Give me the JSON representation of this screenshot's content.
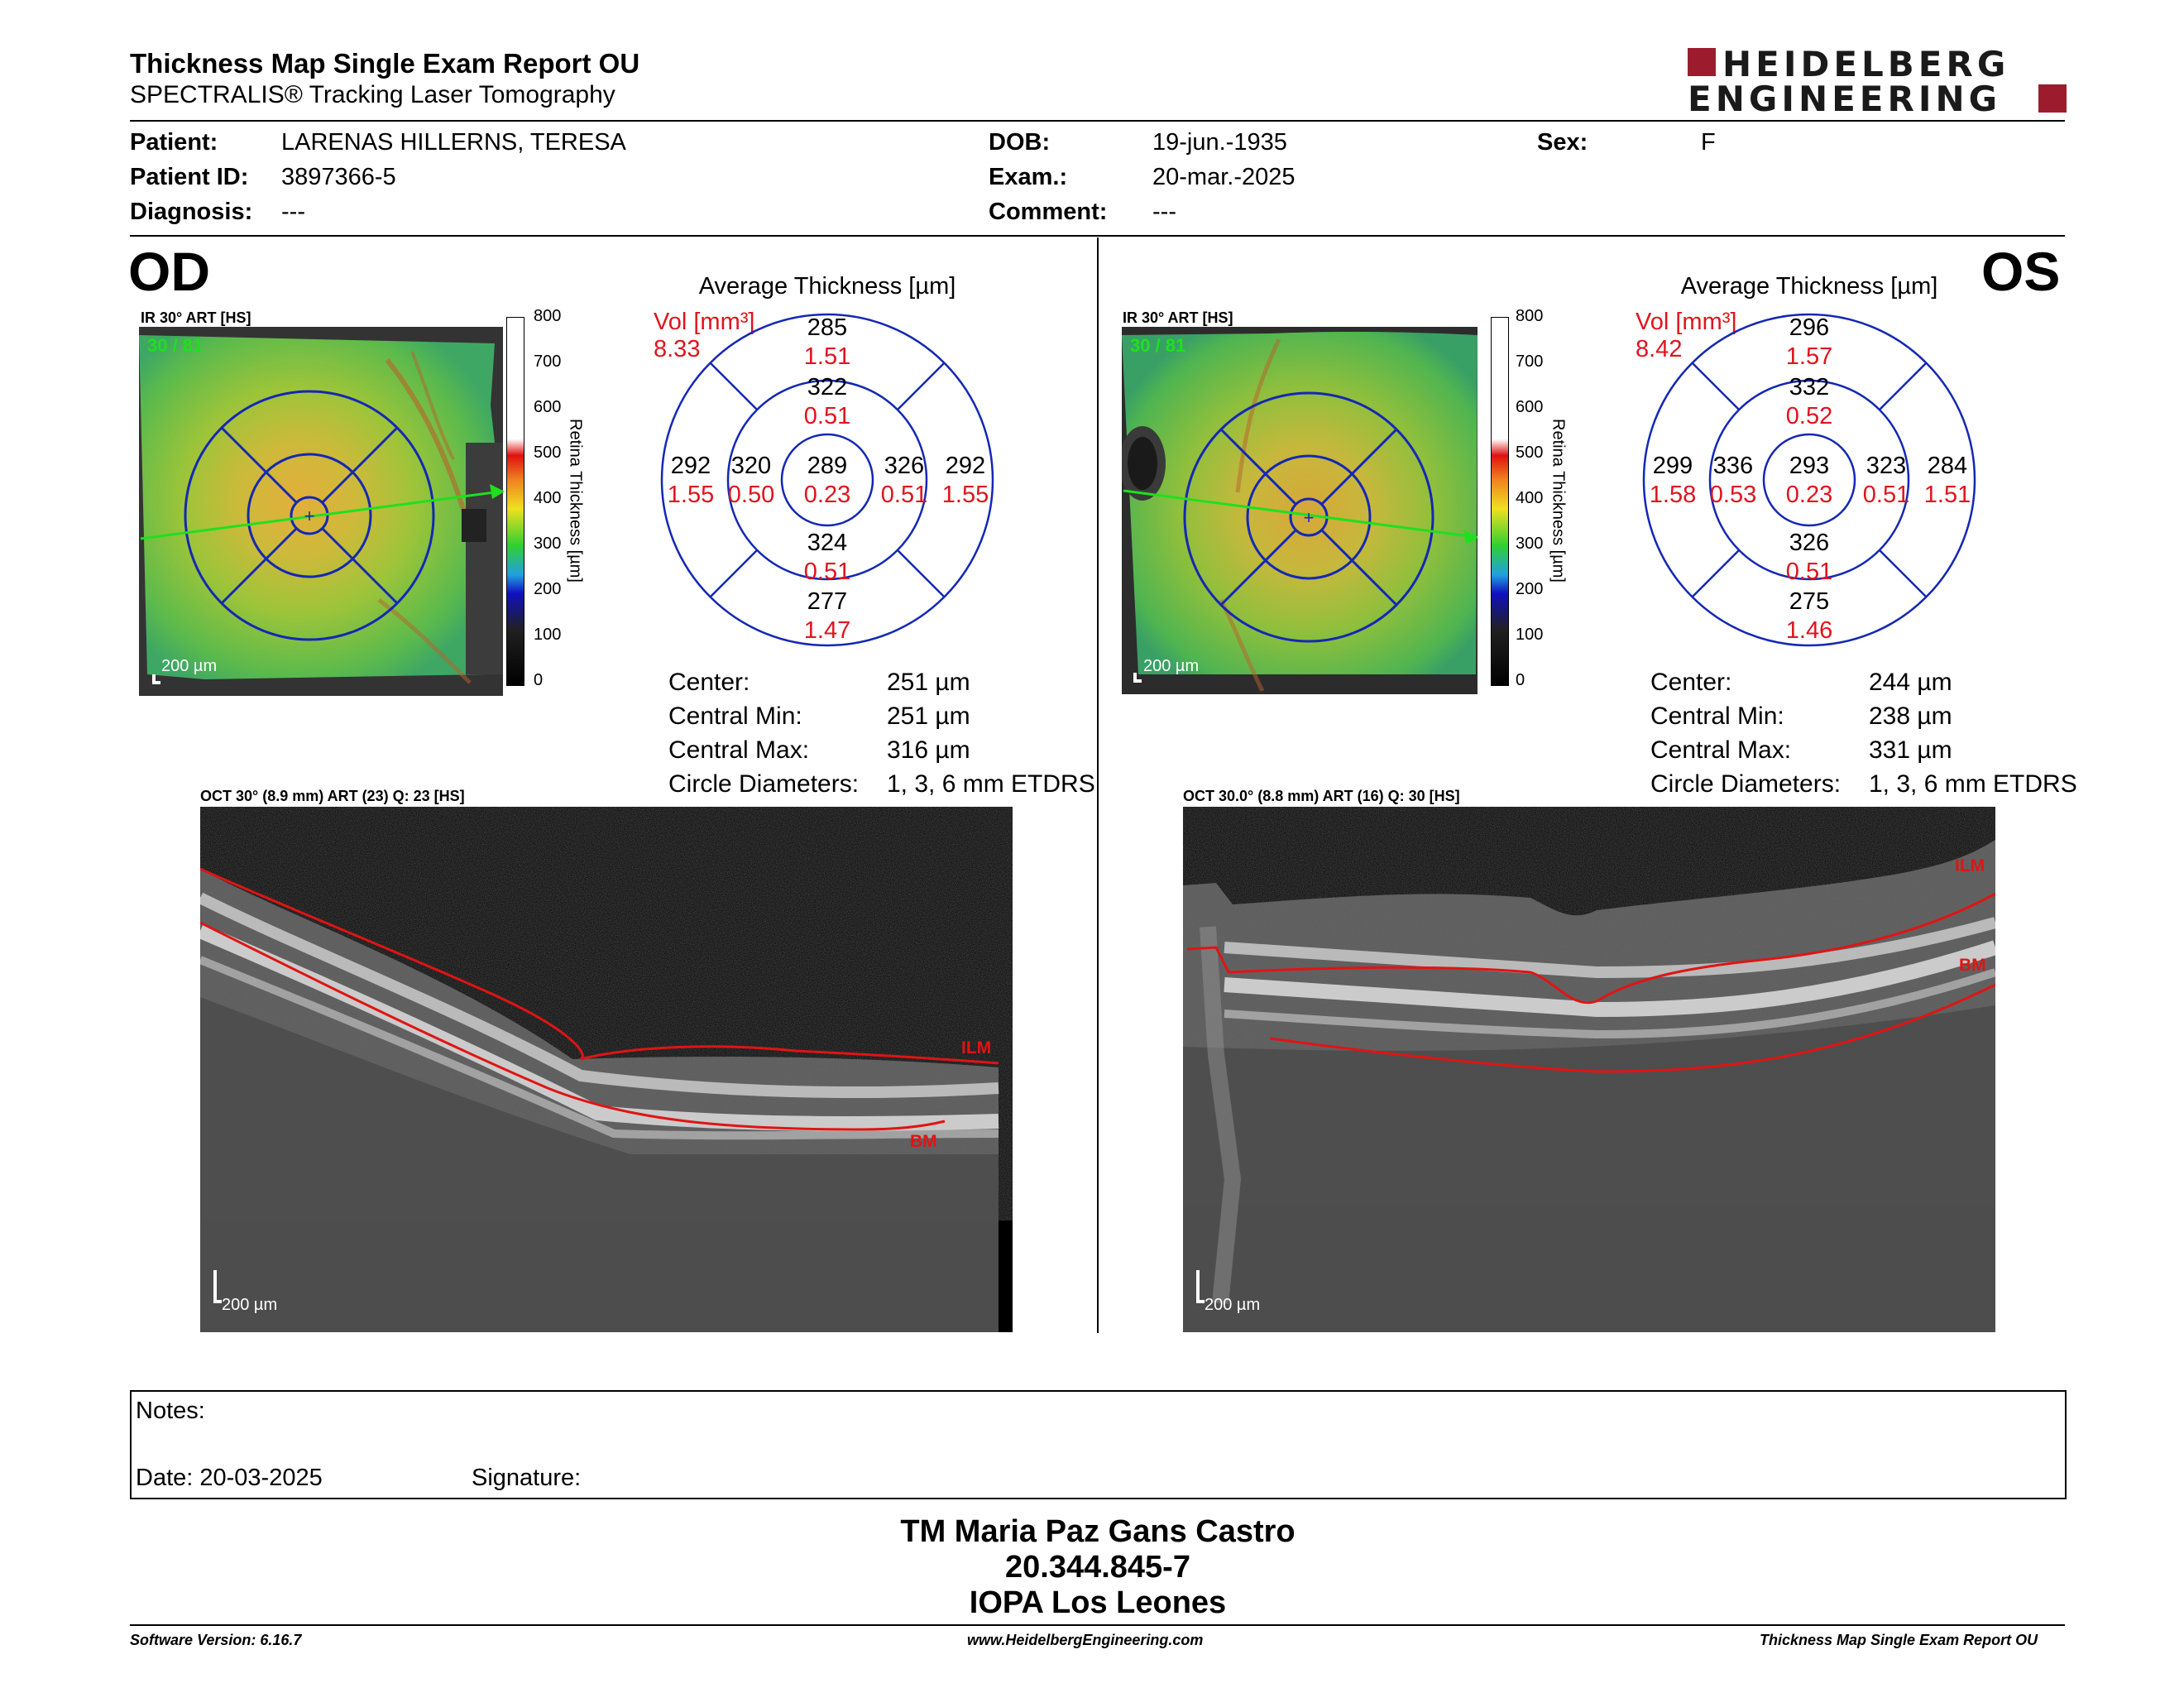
{
  "header": {
    "title": "Thickness Map Single Exam Report OU",
    "subtitle": "SPECTRALIS® Tracking Laser Tomography",
    "logo_line1": "HEIDELBERG",
    "logo_line2": "ENGINEERING"
  },
  "patient": {
    "patient_label": "Patient:",
    "patient_value": "LARENAS HILLERNS, TERESA",
    "id_label": "Patient ID:",
    "id_value": "3897366-5",
    "diagnosis_label": "Diagnosis:",
    "diagnosis_value": "---",
    "dob_label": "DOB:",
    "dob_value": "19-jun.-1935",
    "exam_label": "Exam.:",
    "exam_value": "20-mar.-2025",
    "comment_label": "Comment:",
    "comment_value": "---",
    "sex_label": "Sex:",
    "sex_value": "F"
  },
  "od": {
    "eye": "OD",
    "ir_label": "IR 30° ART [HS]",
    "ir_overlay": "30 / 81",
    "scale": "200 µm",
    "colorbar_ticks": [
      "800",
      "700",
      "600",
      "500",
      "400",
      "300",
      "200",
      "100",
      "0"
    ],
    "colorbar_label": "Retina Thickness [µm]",
    "avg_title": "Average Thickness [µm]",
    "vol_label": "Vol [mm³]",
    "vol_value": "8.33",
    "grid": {
      "outer_top": {
        "t": "285",
        "v": "1.51"
      },
      "inner_top": {
        "t": "322",
        "v": "0.51"
      },
      "outer_nasal": {
        "t": "292",
        "v": "1.55"
      },
      "inner_nasal": {
        "t": "320",
        "v": "0.50"
      },
      "center": {
        "t": "289",
        "v": "0.23"
      },
      "inner_temp": {
        "t": "326",
        "v": "0.51"
      },
      "outer_temp": {
        "t": "292",
        "v": "1.55"
      },
      "inner_bottom": {
        "t": "324",
        "v": "0.51"
      },
      "outer_bottom": {
        "t": "277",
        "v": "1.47"
      }
    },
    "stats": {
      "center_label": "Center:",
      "center_value": "251 µm",
      "min_label": "Central Min:",
      "min_value": "251 µm",
      "max_label": "Central Max:",
      "max_value": "316 µm",
      "diam_label": "Circle Diameters:",
      "diam_value": "1, 3, 6 mm ETDRS"
    },
    "oct_label": "OCT 30° (8.9 mm) ART (23) Q: 23 [HS]",
    "ilm": "ILM",
    "bm": "BM",
    "oct_scale": "200 µm"
  },
  "os": {
    "eye": "OS",
    "ir_label": "IR 30° ART [HS]",
    "ir_overlay": "30 / 81",
    "scale": "200 µm",
    "colorbar_ticks": [
      "800",
      "700",
      "600",
      "500",
      "400",
      "300",
      "200",
      "100",
      "0"
    ],
    "colorbar_label": "Retina Thickness [µm]",
    "avg_title": "Average Thickness [µm]",
    "vol_label": "Vol [mm³]",
    "vol_value": "8.42",
    "grid": {
      "outer_top": {
        "t": "296",
        "v": "1.57"
      },
      "inner_top": {
        "t": "332",
        "v": "0.52"
      },
      "outer_nasal": {
        "t": "299",
        "v": "1.58"
      },
      "inner_nasal": {
        "t": "336",
        "v": "0.53"
      },
      "center": {
        "t": "293",
        "v": "0.23"
      },
      "inner_temp": {
        "t": "323",
        "v": "0.51"
      },
      "outer_temp": {
        "t": "284",
        "v": "1.51"
      },
      "inner_bottom": {
        "t": "326",
        "v": "0.51"
      },
      "outer_bottom": {
        "t": "275",
        "v": "1.46"
      }
    },
    "stats": {
      "center_label": "Center:",
      "center_value": "244 µm",
      "min_label": "Central Min:",
      "min_value": "238 µm",
      "max_label": "Central Max:",
      "max_value": "331 µm",
      "diam_label": "Circle Diameters:",
      "diam_value": "1, 3, 6 mm ETDRS"
    },
    "oct_label": "OCT 30.0° (8.8 mm) ART (16) Q: 30 [HS]",
    "ilm": "ILM",
    "bm": "BM",
    "oct_scale": "200 µm"
  },
  "notes": {
    "notes_label": "Notes:",
    "date_label": "Date: 20-03-2025",
    "signature_label": "Signature:"
  },
  "signature_block": {
    "name": "TM Maria Paz Gans Castro",
    "rut": "20.344.845-7",
    "institution": "IOPA Los Leones"
  },
  "footer": {
    "software": "Software Version: 6.16.7",
    "website": "www.HeidelbergEngineering.com",
    "report": "Thickness Map Single Exam Report OU"
  },
  "colors": {
    "logo_red": "#9c1c2e",
    "value_red": "#e0141e",
    "grid_blue": "#1428b4",
    "seg_red": "#e01414"
  }
}
